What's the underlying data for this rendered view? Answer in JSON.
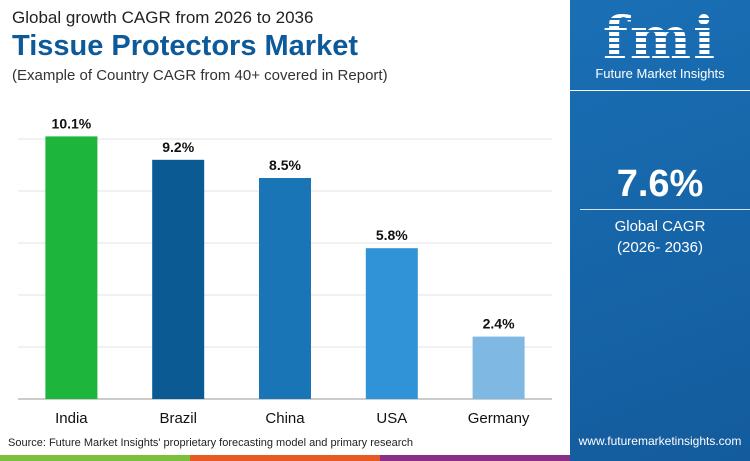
{
  "header": {
    "subtitle": "Global growth CAGR from 2026 to 2036",
    "title": "Tissue Protectors Market",
    "note": "(Example of Country CAGR from 40+ covered in Report)"
  },
  "chart_data": {
    "type": "bar",
    "categories": [
      "India",
      "Brazil",
      "China",
      "USA",
      "Germany"
    ],
    "values": [
      10.1,
      9.2,
      8.5,
      5.8,
      2.4
    ],
    "labels": [
      "10.1%",
      "9.2%",
      "8.5%",
      "5.8%",
      "2.4%"
    ],
    "colors": [
      "#1db53c",
      "#0c5a94",
      "#1a75b7",
      "#3093d8",
      "#7eb8e3"
    ],
    "ylim": [
      0,
      10
    ],
    "grid": true
  },
  "footer": {
    "source": "Source: Future Market Insights' proprietary forecasting model and primary research",
    "website": "www.futuremarketinsights.com",
    "strip_colors": [
      "#7bbf3b",
      "#e85a24",
      "#8a2f88"
    ]
  },
  "panel": {
    "logo": "fmi",
    "brand": "Future Market Insights",
    "cagr": "7.6%",
    "cagr_label": "Global CAGR",
    "period": "(2026- 2036)"
  }
}
